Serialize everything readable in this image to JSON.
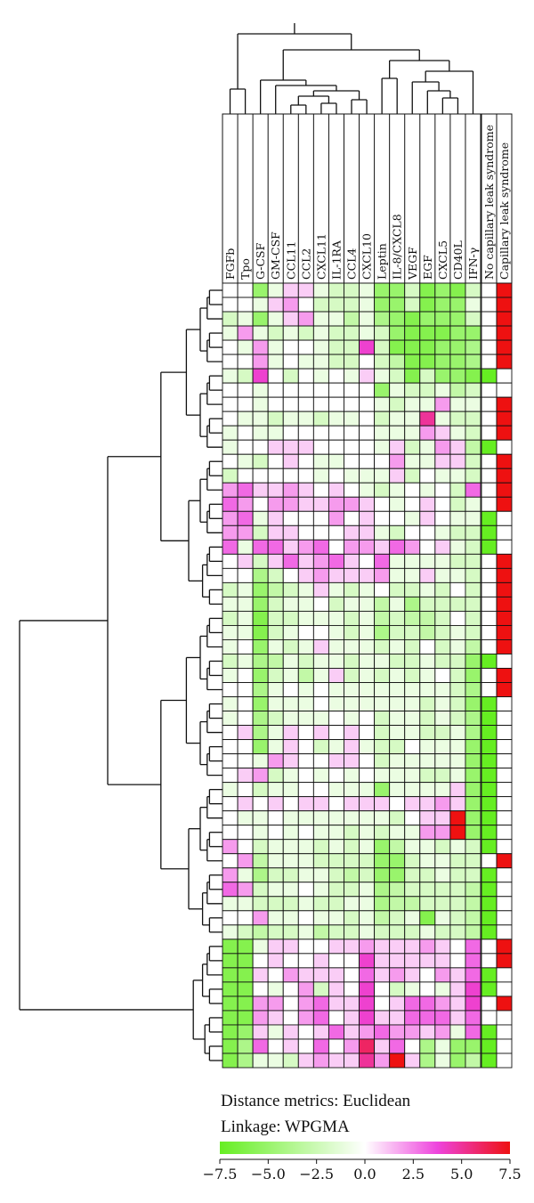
{
  "chart_data": {
    "type": "heatmap",
    "title": "",
    "columns": [
      "FGFb",
      "Tpo",
      "G-CSF",
      "GM-CSF",
      "CCL11",
      "CCL2",
      "CXCL11",
      "IL-1RA",
      "CCL4",
      "CXCL10",
      "Leptin",
      "IL-8/CXCL8",
      "VEGF",
      "EGF",
      "CXCL5",
      "CD40L",
      "IFN-γ"
    ],
    "annotation_columns": [
      "No capillary leak syndrome",
      "Capillary leak syndrome"
    ],
    "row_count": 55,
    "colorscale": {
      "min": -7.5,
      "max": 7.5,
      "stops": [
        {
          "value": -7.5,
          "color": "#66ee22"
        },
        {
          "value": 0.0,
          "color": "#ffffff"
        },
        {
          "value": 3.75,
          "color": "#ee44dd"
        },
        {
          "value": 7.5,
          "color": "#ee1111"
        }
      ],
      "tick_labels": [
        "−7.5",
        "−5.0",
        "−2.5",
        "0.0",
        "2.5",
        "5.0",
        "7.5"
      ],
      "tick_values": [
        -7.5,
        -5.0,
        -2.5,
        0.0,
        2.5,
        5.0,
        7.5
      ]
    },
    "distance_metric_text": "Distance metrics: Euclidean",
    "linkage_text": "Linkage: WPGMA",
    "annotation_colors": {
      "no_cls": "#66ee22",
      "cls": "#ee1111",
      "empty": "#ffffff"
    },
    "annotation_rows": [
      [
        0,
        1
      ],
      [
        0,
        1
      ],
      [
        0,
        1
      ],
      [
        0,
        1
      ],
      [
        0,
        1
      ],
      [
        0,
        1
      ],
      [
        1,
        0
      ],
      [
        0,
        0
      ],
      [
        0,
        1
      ],
      [
        0,
        1
      ],
      [
        0,
        1
      ],
      [
        1,
        0
      ],
      [
        0,
        1
      ],
      [
        0,
        1
      ],
      [
        0,
        1
      ],
      [
        0,
        1
      ],
      [
        1,
        0
      ],
      [
        1,
        0
      ],
      [
        1,
        0
      ],
      [
        0,
        1
      ],
      [
        0,
        1
      ],
      [
        0,
        1
      ],
      [
        0,
        1
      ],
      [
        0,
        1
      ],
      [
        0,
        1
      ],
      [
        0,
        1
      ],
      [
        1,
        0
      ],
      [
        0,
        1
      ],
      [
        0,
        1
      ],
      [
        1,
        0
      ],
      [
        1,
        0
      ],
      [
        1,
        0
      ],
      [
        1,
        0
      ],
      [
        1,
        0
      ],
      [
        1,
        0
      ],
      [
        1,
        0
      ],
      [
        1,
        0
      ],
      [
        1,
        0
      ],
      [
        1,
        0
      ],
      [
        1,
        0
      ],
      [
        0,
        1
      ],
      [
        1,
        0
      ],
      [
        1,
        0
      ],
      [
        1,
        0
      ],
      [
        1,
        0
      ],
      [
        1,
        0
      ],
      [
        0,
        1
      ],
      [
        0,
        1
      ],
      [
        1,
        0
      ],
      [
        1,
        0
      ],
      [
        0,
        1
      ],
      [
        0,
        0
      ],
      [
        1,
        0
      ],
      [
        1,
        0
      ],
      [
        1,
        0
      ]
    ],
    "values": [
      [
        0,
        0,
        -5,
        -1,
        1,
        1,
        -1,
        -2,
        -2,
        -1,
        -5,
        -5,
        -2,
        -6,
        -5,
        -6,
        -2
      ],
      [
        0,
        0,
        -1,
        1,
        2,
        0,
        -2,
        -2,
        -2,
        -1,
        -5,
        -5,
        -2,
        -6,
        -5,
        -5,
        -1
      ],
      [
        -2,
        -1,
        -5,
        -1,
        1,
        2,
        -1,
        -1,
        -3,
        -1,
        -4,
        -5,
        -6,
        -5,
        -5,
        -5,
        -2
      ],
      [
        -1,
        2,
        -1,
        -2,
        -1,
        -2,
        -1,
        -2,
        -2,
        -1,
        -2,
        -5,
        -6,
        -6,
        -6,
        -5,
        -5
      ],
      [
        0,
        -1,
        2,
        -1,
        0,
        0,
        -1,
        -2,
        -2,
        4,
        -2,
        -6,
        -6,
        -6,
        -5,
        -5,
        -4
      ],
      [
        0,
        0,
        2,
        -1,
        0,
        -1,
        -1,
        -2,
        -2,
        0,
        -2,
        -3,
        -6,
        -6,
        -5,
        -5,
        -4
      ],
      [
        -1,
        -2,
        4,
        0,
        -2,
        0,
        -1,
        0,
        -1,
        1,
        -1,
        -2,
        -6,
        -2,
        -5,
        -5,
        -6
      ],
      [
        0,
        0,
        -1,
        0,
        0,
        0,
        0,
        0,
        0,
        0,
        -5,
        -1,
        -2,
        -2,
        -1,
        -3,
        -2
      ],
      [
        0,
        0,
        -1,
        0,
        0,
        0,
        0,
        0,
        0,
        0,
        -1,
        -2,
        -1,
        -1,
        2,
        -1,
        -1
      ],
      [
        0,
        -1,
        -1,
        -2,
        -1,
        -1,
        -2,
        -1,
        -1,
        0,
        -2,
        -1,
        -1,
        5,
        -1,
        -2,
        -2
      ],
      [
        -1,
        0,
        -1,
        -1,
        0,
        0,
        0,
        0,
        0,
        0,
        -1,
        -1,
        -1,
        2,
        1,
        -1,
        -2
      ],
      [
        -1,
        0,
        0,
        1,
        1,
        1,
        0,
        0,
        0,
        0,
        -1,
        1,
        -2,
        -1,
        2,
        1,
        -3
      ],
      [
        0,
        -1,
        -2,
        0,
        1,
        0,
        -1,
        -1,
        0,
        0,
        0,
        2,
        -1,
        -1,
        1,
        1,
        -2
      ],
      [
        -2,
        0,
        0,
        0,
        0,
        0,
        -1,
        0,
        -1,
        -1,
        -1,
        1,
        -2,
        0,
        -1,
        -1,
        -2
      ],
      [
        2,
        3,
        1,
        1,
        2,
        1,
        0,
        1,
        0,
        -1,
        -2,
        -1,
        0,
        -1,
        0,
        -2,
        3
      ],
      [
        3,
        2,
        0,
        2,
        2,
        1,
        1,
        2,
        2,
        1,
        0,
        -1,
        0,
        1,
        0,
        -2,
        -1
      ],
      [
        2,
        3,
        -1,
        1,
        0,
        0,
        0,
        2,
        0,
        1,
        0,
        0,
        -1,
        1,
        0,
        -1,
        -1
      ],
      [
        2,
        2,
        -2,
        1,
        1,
        0,
        0,
        0,
        1,
        1,
        -1,
        -2,
        0,
        0,
        -1,
        -2,
        -2
      ],
      [
        3,
        -1,
        3,
        3,
        1,
        2,
        3,
        0,
        2,
        2,
        1,
        3,
        2,
        0,
        1,
        -1,
        -2
      ],
      [
        0,
        1,
        -2,
        1,
        3,
        1,
        2,
        3,
        1,
        0,
        3,
        -1,
        -1,
        -1,
        -1,
        -2,
        -2
      ],
      [
        0,
        0,
        -4,
        -2,
        0,
        1,
        2,
        1,
        1,
        1,
        2,
        -1,
        -1,
        1,
        -1,
        -1,
        -2
      ],
      [
        -2,
        -1,
        -5,
        -3,
        -2,
        -1,
        1,
        -1,
        -2,
        -1,
        0,
        -2,
        -2,
        -1,
        -2,
        0,
        -2
      ],
      [
        -1,
        -1,
        -5,
        -2,
        -1,
        -1,
        0,
        -2,
        -1,
        -1,
        -3,
        -1,
        -4,
        -2,
        -2,
        -2,
        -2
      ],
      [
        -2,
        -1,
        -6,
        -2,
        -2,
        -1,
        -1,
        -1,
        -2,
        -1,
        -3,
        -2,
        -3,
        -3,
        -2,
        0,
        -2
      ],
      [
        -1,
        -1,
        -6,
        -2,
        -1,
        0,
        0,
        -1,
        -2,
        -1,
        -4,
        -2,
        -2,
        -3,
        -2,
        -1,
        -2
      ],
      [
        -1,
        0,
        -5,
        -1,
        -2,
        -1,
        1,
        -1,
        -1,
        -1,
        -2,
        -1,
        -2,
        0,
        -2,
        -1,
        -3
      ],
      [
        -2,
        -1,
        -4,
        -3,
        -1,
        -2,
        -1,
        -1,
        -2,
        -1,
        -1,
        -2,
        -2,
        -1,
        -2,
        -2,
        -5
      ],
      [
        -1,
        0,
        -5,
        -2,
        -1,
        -3,
        -1,
        1,
        -2,
        -1,
        -2,
        -1,
        -2,
        -1,
        0,
        -2,
        -5
      ],
      [
        0,
        0,
        -4,
        -1,
        0,
        -1,
        0,
        -1,
        -1,
        -1,
        -1,
        -1,
        -1,
        -1,
        -1,
        -2,
        -4
      ],
      [
        -1,
        0,
        -5,
        -1,
        -1,
        -1,
        0,
        -1,
        -1,
        -1,
        -1,
        -1,
        -1,
        -2,
        -1,
        -2,
        -5
      ],
      [
        -1,
        0,
        -4,
        -2,
        -1,
        -1,
        -1,
        0,
        -1,
        0,
        -2,
        -1,
        -1,
        -2,
        -1,
        -2,
        -4
      ],
      [
        0,
        1,
        -4,
        -1,
        1,
        0,
        1,
        0,
        1,
        0,
        -2,
        -1,
        -1,
        -2,
        -2,
        -1,
        -4
      ],
      [
        0,
        0,
        -5,
        -1,
        1,
        0,
        -2,
        -1,
        1,
        -1,
        -2,
        -2,
        0,
        -1,
        -1,
        -1,
        -5
      ],
      [
        0,
        0,
        -1,
        2,
        1,
        0,
        0,
        1,
        1,
        0,
        -2,
        -1,
        -1,
        -1,
        -1,
        -1,
        -5
      ],
      [
        0,
        1,
        2,
        -2,
        -1,
        0,
        -1,
        0,
        -1,
        0,
        -1,
        -1,
        -1,
        -2,
        -2,
        -1,
        -5
      ],
      [
        -1,
        0,
        -2,
        -1,
        -1,
        0,
        0,
        -1,
        -1,
        -1,
        -5,
        -1,
        -1,
        -1,
        -1,
        1,
        -5
      ],
      [
        0,
        1,
        0,
        1,
        0,
        1,
        1,
        0,
        1,
        1,
        1,
        0,
        1,
        1,
        2,
        1,
        -5
      ],
      [
        0,
        -1,
        -1,
        0,
        -1,
        -1,
        -1,
        -1,
        -1,
        -1,
        -1,
        -2,
        0,
        1,
        1,
        7.5,
        -5
      ],
      [
        0,
        0,
        -1,
        0,
        -1,
        0,
        -1,
        -1,
        -2,
        -1,
        -2,
        -1,
        -1,
        2,
        2,
        7.5,
        -5
      ],
      [
        2,
        0,
        -2,
        -1,
        -1,
        -1,
        -2,
        -1,
        -2,
        -1,
        -5,
        -3,
        -1,
        -1,
        -2,
        -1,
        -2
      ],
      [
        0,
        2,
        -3,
        -1,
        -1,
        -1,
        -2,
        -2,
        -2,
        -2,
        -5,
        -5,
        -2,
        -1,
        -1,
        -2,
        -2
      ],
      [
        2,
        -1,
        -4,
        -2,
        -2,
        -1,
        -1,
        -2,
        -3,
        -2,
        -5,
        -5,
        -2,
        -2,
        -1,
        -2,
        -2
      ],
      [
        3,
        2,
        -2,
        -1,
        -1,
        0,
        -1,
        -2,
        -2,
        -1,
        -4,
        -3,
        -2,
        -2,
        -2,
        -2,
        -3
      ],
      [
        -1,
        -1,
        -2,
        -2,
        -2,
        -1,
        -2,
        -2,
        -1,
        -1,
        -4,
        -3,
        -3,
        -2,
        -2,
        -2,
        -3
      ],
      [
        0,
        0,
        2,
        -1,
        -1,
        0,
        -1,
        -1,
        -2,
        -1,
        -3,
        -2,
        -1,
        -6,
        -1,
        -2,
        -3
      ],
      [
        -1,
        -2,
        -3,
        -2,
        -2,
        -1,
        -3,
        -2,
        -2,
        -1,
        -2,
        -2,
        -2,
        -1,
        -2,
        -2,
        -3
      ],
      [
        -6,
        -6,
        -1,
        1,
        1,
        0,
        0,
        1,
        1,
        2,
        1,
        1,
        1,
        2,
        1,
        0,
        3
      ],
      [
        -6,
        -6,
        0,
        1,
        0,
        0,
        1,
        0,
        0,
        4,
        1,
        1,
        1,
        1,
        1,
        0,
        3
      ],
      [
        -6,
        -6,
        1,
        0,
        2,
        1,
        1,
        1,
        0,
        3,
        1,
        2,
        1,
        0,
        2,
        1,
        3
      ],
      [
        -6,
        -6,
        0,
        -1,
        0,
        2,
        -2,
        1,
        0,
        4,
        0,
        -2,
        -1,
        0,
        -1,
        1,
        4
      ],
      [
        -6,
        -6,
        2,
        2,
        0,
        2,
        3,
        1,
        1,
        4,
        0,
        1,
        3,
        3,
        2,
        1,
        4
      ],
      [
        -6,
        -6,
        2,
        1,
        0,
        2,
        3,
        0,
        1,
        4,
        1,
        1,
        3,
        3,
        3,
        1,
        3
      ],
      [
        -6,
        -5,
        1,
        -1,
        1,
        0,
        1,
        3,
        1,
        2,
        3,
        2,
        2,
        1,
        2,
        -1,
        3
      ],
      [
        -6,
        -4,
        3,
        0,
        1,
        0,
        3,
        0,
        2,
        6,
        1,
        3,
        0,
        -4,
        -1,
        -5,
        -5
      ],
      [
        -6,
        -4,
        -1,
        -1,
        -2,
        1,
        2,
        1,
        1,
        5,
        2,
        7.5,
        1,
        -4,
        -1,
        -5,
        -3
      ]
    ]
  }
}
